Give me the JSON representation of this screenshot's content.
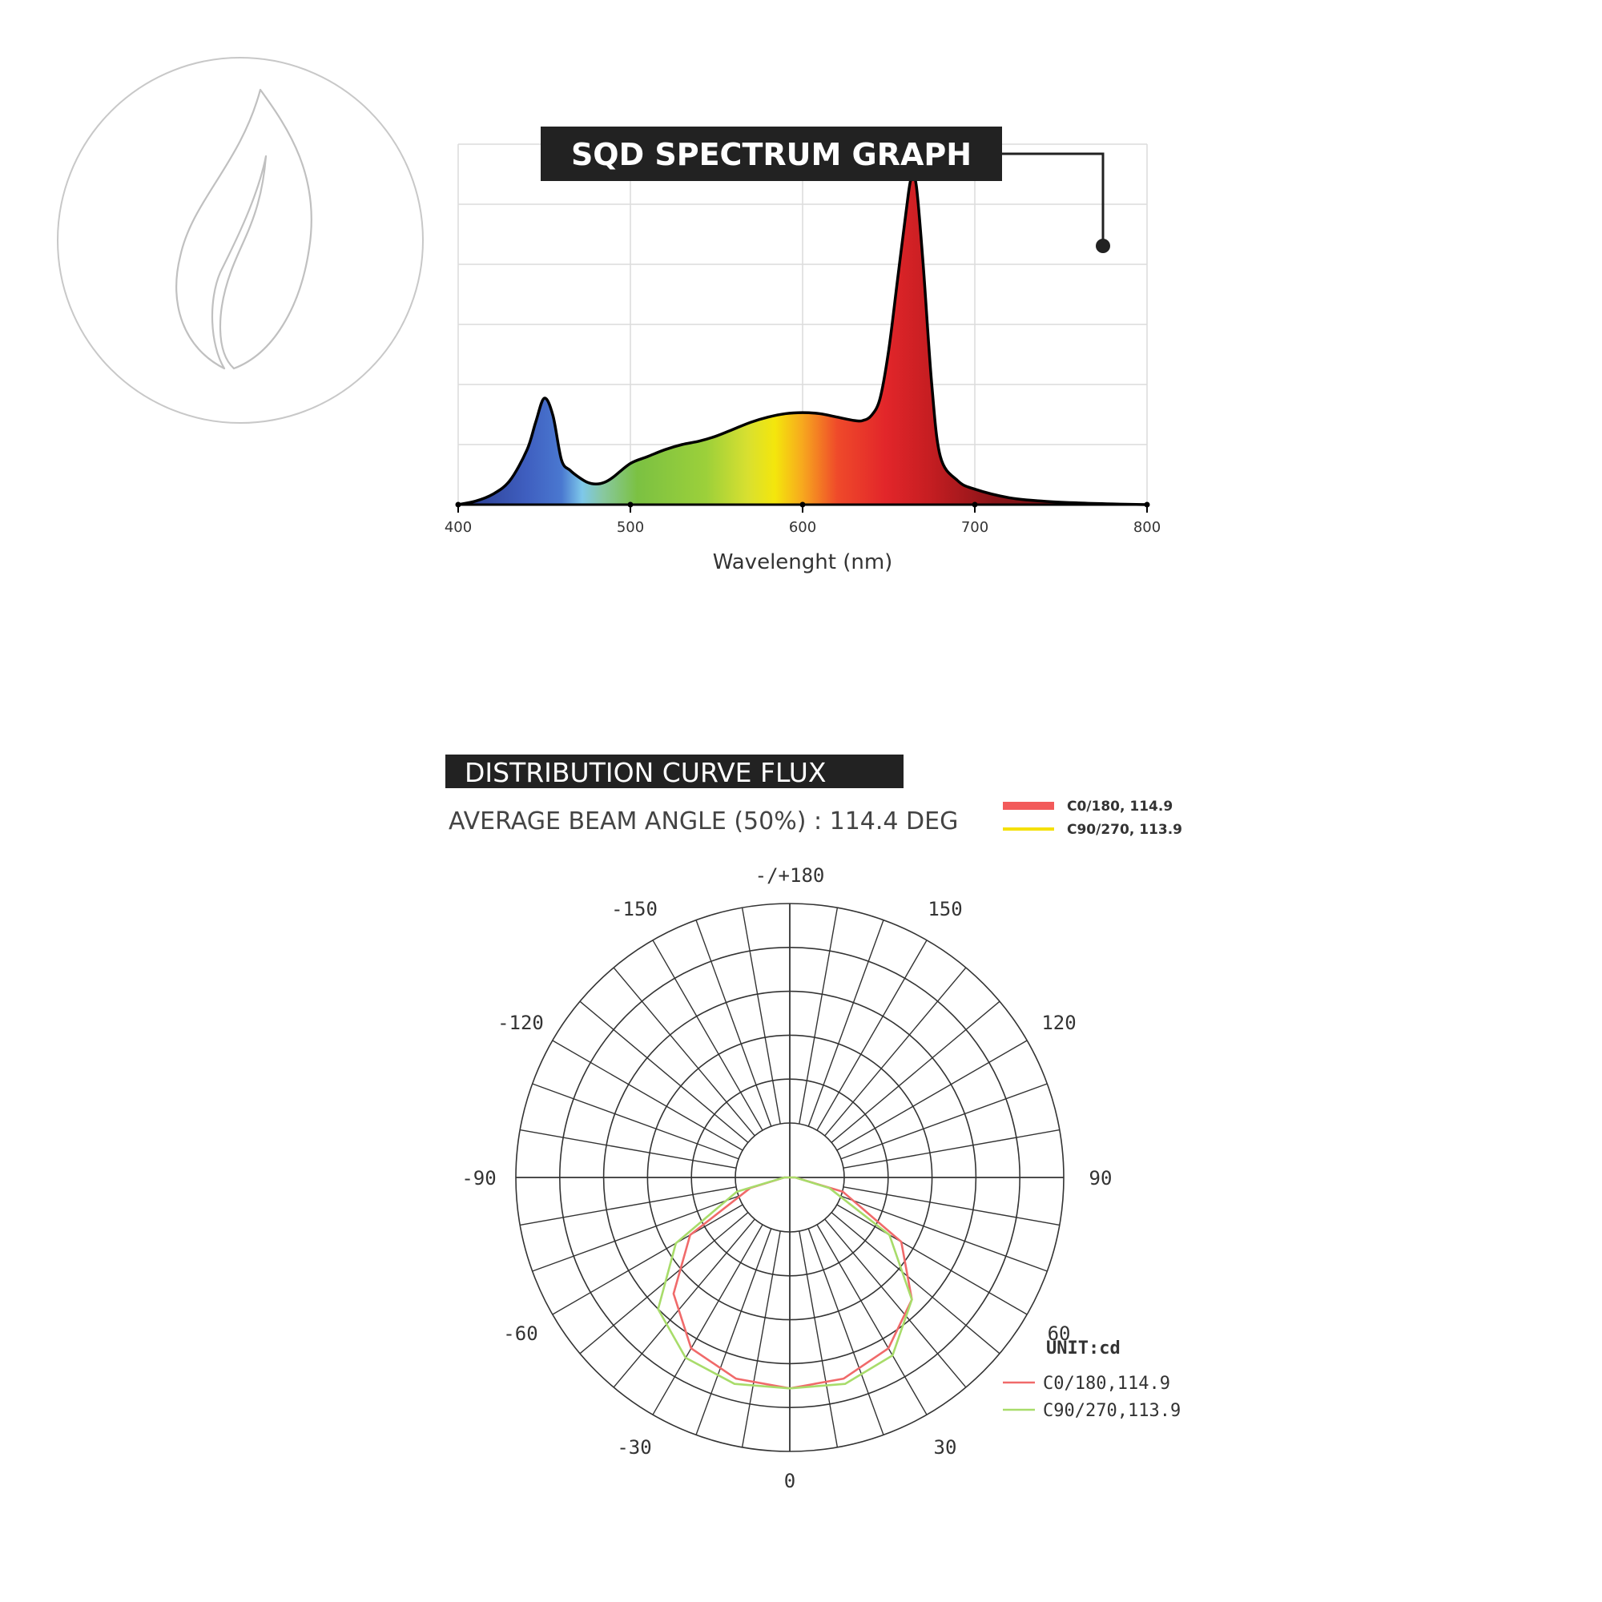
{
  "colors": {
    "title_bg": "#222222",
    "title_fg": "#ffffff",
    "grid": "#dcdcdc",
    "axis": "#000000",
    "polar_grid": "#333333",
    "c0_curve": "#f06a6a",
    "c90_curve": "#a8dc6a",
    "legend_c0": "#f25a5a",
    "legend_c90": "#f5e000",
    "logo_stroke": "#c8c8c8"
  },
  "logo": {
    "icon": "leaf-icon"
  },
  "chart_data": [
    {
      "type": "area",
      "title": "SQD SPECTRUM GRAPH",
      "xlabel": "Wavelenght (nm)",
      "xticks": [
        "400",
        "500",
        "600",
        "700",
        "800"
      ],
      "xlim": [
        400,
        800
      ],
      "ylim": [
        0,
        1.05
      ],
      "grid": true,
      "x": [
        400,
        410,
        420,
        430,
        440,
        445,
        450,
        455,
        460,
        465,
        470,
        475,
        480,
        485,
        490,
        500,
        510,
        520,
        530,
        540,
        550,
        560,
        570,
        580,
        590,
        600,
        610,
        620,
        630,
        635,
        640,
        645,
        650,
        655,
        660,
        663,
        666,
        670,
        675,
        680,
        690,
        700,
        720,
        740,
        760,
        780,
        800
      ],
      "y": [
        0,
        0.01,
        0.03,
        0.07,
        0.16,
        0.24,
        0.31,
        0.26,
        0.13,
        0.1,
        0.08,
        0.065,
        0.06,
        0.065,
        0.08,
        0.12,
        0.14,
        0.16,
        0.175,
        0.185,
        0.2,
        0.22,
        0.24,
        0.255,
        0.265,
        0.268,
        0.265,
        0.255,
        0.245,
        0.245,
        0.26,
        0.31,
        0.45,
        0.65,
        0.85,
        0.95,
        0.93,
        0.7,
        0.35,
        0.14,
        0.07,
        0.045,
        0.02,
        0.01,
        0.005,
        0.002,
        0
      ]
    },
    {
      "type": "polar",
      "title": "DISTRIBUTION CURVE FLUX",
      "subtitle": "AVERAGE BEAM ANGLE  (50%) : 114.4 DEG",
      "unit_label": "UNIT:cd",
      "angle_labels": [
        "-/+180",
        "150",
        "120",
        "90",
        "60",
        "30",
        "0",
        "-30",
        "-60",
        "-90",
        "-120",
        "-150"
      ],
      "angles": [
        -90,
        -75,
        -60,
        -45,
        -30,
        -15,
        0,
        15,
        30,
        45,
        60,
        75,
        90
      ],
      "legend_top": [
        {
          "label": "C0/180, 114.9"
        },
        {
          "label": "C90/270, 113.9"
        }
      ],
      "series": [
        {
          "name": "C0/180,114.9",
          "values": [
            0.02,
            0.15,
            0.42,
            0.6,
            0.72,
            0.76,
            0.77,
            0.76,
            0.72,
            0.63,
            0.47,
            0.2,
            0.02
          ]
        },
        {
          "name": "C90/270,113.9",
          "values": [
            0.02,
            0.2,
            0.48,
            0.68,
            0.76,
            0.78,
            0.77,
            0.78,
            0.75,
            0.63,
            0.42,
            0.15,
            0.02
          ]
        }
      ]
    }
  ]
}
